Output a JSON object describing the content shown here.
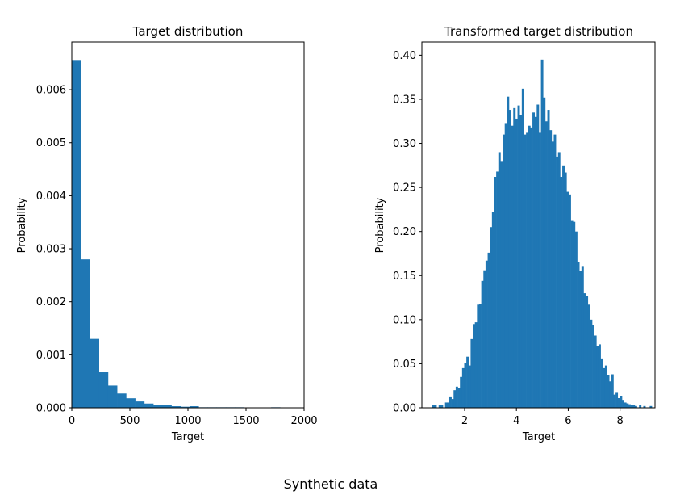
{
  "figure": {
    "suptitle": "Synthetic data"
  },
  "colors": {
    "bar": "#1f77b4",
    "axis": "#000000"
  },
  "chart_data": [
    {
      "type": "bar",
      "title": "Target distribution",
      "xlabel": "Target",
      "ylabel": "Probability",
      "xlim": [
        0,
        2000
      ],
      "ylim": [
        0,
        0.0069
      ],
      "xticks": [
        0,
        500,
        1000,
        1500,
        2000
      ],
      "xtick_labels": [
        "0",
        "500",
        "1000",
        "1500",
        "2000"
      ],
      "yticks": [
        0,
        0.001,
        0.002,
        0.003,
        0.004,
        0.005,
        0.006
      ],
      "ytick_labels": [
        "0.000",
        "0.001",
        "0.002",
        "0.003",
        "0.004",
        "0.005",
        "0.006"
      ],
      "bin_width": 78,
      "bins_left": [
        0,
        78,
        156,
        234,
        312,
        390,
        468,
        546,
        624,
        702,
        780,
        858,
        936,
        1014,
        1092,
        1170,
        1248,
        1326,
        1404,
        1482,
        1560,
        1638,
        1716,
        1794
      ],
      "values": [
        0.00656,
        0.0028,
        0.0013,
        0.00067,
        0.00042,
        0.00027,
        0.00018,
        0.00012,
        8e-05,
        6e-05,
        6e-05,
        3e-05,
        2e-05,
        3e-05,
        1e-05,
        1e-05,
        1e-05,
        1e-05,
        1e-05,
        5e-06,
        0.0,
        0.0,
        1e-05,
        0.0
      ]
    },
    {
      "type": "bar",
      "title": "Transformed target distribution",
      "xlabel": "Target",
      "ylabel": "Probability",
      "xlim": [
        0.35,
        9.35
      ],
      "ylim": [
        0,
        0.415
      ],
      "xticks": [
        2,
        4,
        6,
        8
      ],
      "xtick_labels": [
        "2",
        "4",
        "6",
        "8"
      ],
      "yticks": [
        0,
        0.05,
        0.1,
        0.15,
        0.2,
        0.25,
        0.3,
        0.35,
        0.4
      ],
      "ytick_labels": [
        "0.00",
        "0.05",
        "0.10",
        "0.15",
        "0.20",
        "0.25",
        "0.30",
        "0.35",
        "0.40"
      ],
      "bin_width": 0.0823,
      "x_start": 0.75,
      "values": [
        0.003,
        0.003,
        0.0,
        0.003,
        0.003,
        0.0,
        0.006,
        0.006,
        0.012,
        0.01,
        0.02,
        0.024,
        0.022,
        0.035,
        0.045,
        0.051,
        0.058,
        0.048,
        0.078,
        0.095,
        0.097,
        0.117,
        0.118,
        0.144,
        0.156,
        0.167,
        0.176,
        0.205,
        0.222,
        0.262,
        0.268,
        0.29,
        0.28,
        0.31,
        0.323,
        0.353,
        0.338,
        0.32,
        0.34,
        0.328,
        0.343,
        0.332,
        0.362,
        0.31,
        0.312,
        0.32,
        0.318,
        0.335,
        0.33,
        0.344,
        0.312,
        0.395,
        0.352,
        0.325,
        0.338,
        0.315,
        0.302,
        0.31,
        0.285,
        0.29,
        0.262,
        0.275,
        0.267,
        0.245,
        0.242,
        0.212,
        0.211,
        0.2,
        0.165,
        0.155,
        0.16,
        0.13,
        0.127,
        0.117,
        0.1,
        0.094,
        0.082,
        0.07,
        0.072,
        0.056,
        0.045,
        0.048,
        0.037,
        0.03,
        0.038,
        0.015,
        0.017,
        0.011,
        0.013,
        0.009,
        0.006,
        0.005,
        0.004,
        0.003,
        0.003,
        0.002,
        0.0,
        0.003,
        0.0,
        0.002,
        0.0,
        0.0,
        0.002,
        0.0
      ]
    }
  ]
}
